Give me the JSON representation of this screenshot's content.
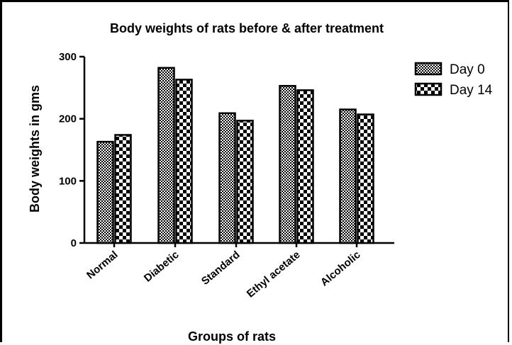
{
  "chart_data": {
    "type": "bar",
    "title": "Body weights of rats before & after treatment",
    "xlabel": "Groups of rats",
    "ylabel": "Body weights in gms",
    "categories": [
      "Normal",
      "Diabetic",
      "Standard",
      "Ethyl acetate",
      "Alcoholic"
    ],
    "series": [
      {
        "name": "Day 0",
        "values": [
          163,
          282,
          209,
          253,
          215
        ],
        "pattern": "fine-checker"
      },
      {
        "name": "Day 14",
        "values": [
          174,
          263,
          197,
          246,
          207
        ],
        "pattern": "coarse-checker"
      }
    ],
    "ylim": [
      0,
      300
    ],
    "yticks": [
      0,
      100,
      200,
      300
    ],
    "grid": false,
    "legend_position": "top-right",
    "colors": {
      "ink": "#000000",
      "fill_light": "#ffffff"
    }
  }
}
